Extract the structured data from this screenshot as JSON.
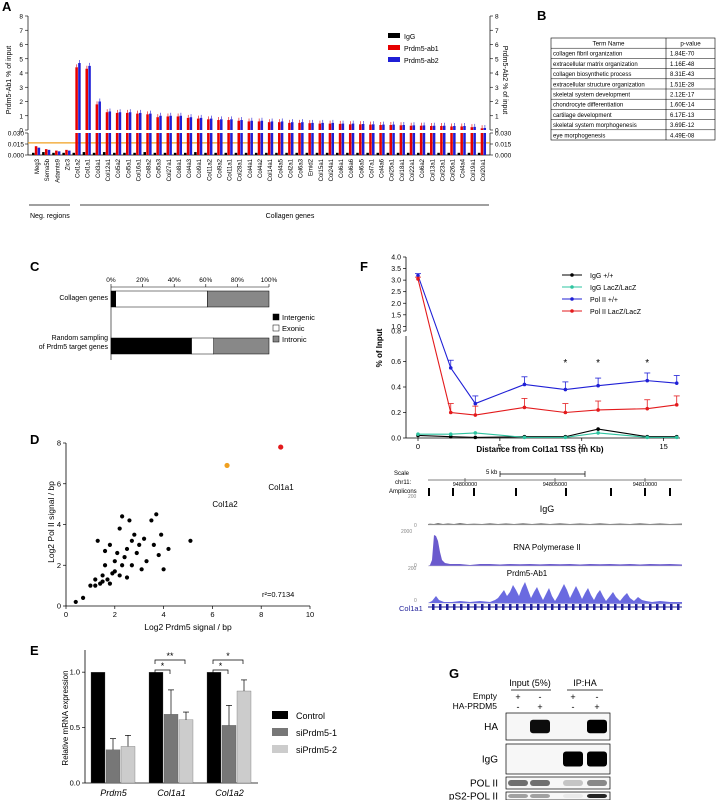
{
  "panel_letters": {
    "A": "A",
    "B": "B",
    "C": "C",
    "D": "D",
    "E": "E",
    "F": "F",
    "G": "G"
  },
  "panel_a": {
    "y_left_label": "Prdm5-Ab1 % of input",
    "y_right_label": "Prdm5-Ab2 % of input",
    "y_upper_ticks": [
      "0",
      "1",
      "2",
      "3",
      "4",
      "5",
      "6",
      "7",
      "8"
    ],
    "y_lower_ticks": [
      "0.000",
      "0.015",
      "0.030"
    ],
    "legend": [
      "IgG",
      "Prdm5-ab1",
      "Prdm5-ab2"
    ],
    "group_neg": "Neg. regions",
    "group_coll": "Collagen genes",
    "colors": {
      "igg": "#000000",
      "ab1": "#e60000",
      "ab2": "#1f1fd6",
      "threshold": "#f0a020"
    }
  },
  "panel_b": {
    "headers": [
      "Term Name",
      "p-value"
    ],
    "rows": [
      [
        "collagen fibril organization",
        "1.84E-70"
      ],
      [
        "extracellular matrix organization",
        "1.16E-48"
      ],
      [
        "collagen biosynthetic process",
        "8.31E-43"
      ],
      [
        "extracellular structure organization",
        "1.51E-28"
      ],
      [
        "skeletal system development",
        "2.12E-17"
      ],
      [
        "chondrocyte differentiation",
        "1.60E-14"
      ],
      [
        "cartilage development",
        "6.17E-13"
      ],
      [
        "skeletal system morphogenesis",
        "3.69E-12"
      ],
      [
        "eye morphogenesis",
        "4.49E-08"
      ]
    ]
  },
  "panel_c": {
    "ticks": [
      "0%",
      "20%",
      "40%",
      "60%",
      "80%",
      "100%"
    ],
    "row1": "Collagen genes",
    "row2_line1": "Random sampling",
    "row2_line2": "of Prdm5 target genes",
    "legend": [
      "Intergenic",
      "Exonic",
      "Intronic"
    ]
  },
  "panel_d": {
    "xlabel": "Log2 Prdm5 signal / bp",
    "ylabel": "Log2 Pol II signal / bp",
    "xticks": [
      "0",
      "2",
      "4",
      "6",
      "8",
      "10"
    ],
    "yticks": [
      "0",
      "2",
      "4",
      "6",
      "8"
    ],
    "r2": "r²=0.7134",
    "labels": {
      "col1a1": "Col1a1",
      "col1a2": "Col1a2"
    }
  },
  "panel_e": {
    "ylabel": "Relative mRNA expression",
    "yticks": [
      "0.0",
      "0.5",
      "1.0"
    ],
    "genes": [
      "Prdm5",
      "Col1a1",
      "Col1a2"
    ],
    "legend": [
      "Control",
      "siPrdm5-1",
      "siPrdm5-2"
    ],
    "stars": [
      "**",
      "*",
      "*",
      "*"
    ]
  },
  "panel_f": {
    "ylabel": "% of Input",
    "xlabel": "Distance from Col1a1 TSS (in Kb)",
    "yticks_upper": [
      "0.8",
      "1.0",
      "1.5",
      "2.0",
      "2.5",
      "3.0",
      "3.5",
      "4.0"
    ],
    "yticks_lower": [
      "0.0",
      "0.2",
      "0.4",
      "0.6"
    ],
    "xticks": [
      "0",
      "5",
      "10",
      "15"
    ],
    "legend": [
      "IgG +/+",
      "IgG LacZ/LacZ",
      "Pol II +/+",
      "Pol II LacZ/LacZ"
    ],
    "stars": [
      "*",
      "*",
      "*"
    ]
  },
  "panel_f_tracks": {
    "scale": "Scale",
    "chrom": "chr11:",
    "amplicons": "Amplicons",
    "scalebar": "5 kb",
    "coords": [
      "94800000",
      "94805000",
      "94810000"
    ],
    "track_titles": [
      "IgG",
      "RNA Polymerase II",
      "Prdm5-Ab1"
    ],
    "track_max": [
      "200",
      "2000",
      "200"
    ],
    "track_min": [
      "0",
      "0",
      "0"
    ],
    "gene": "Col1a1"
  },
  "panel_g": {
    "header1": "Input (5%)",
    "header2": "IP:HA",
    "row_empty": "Empty",
    "row_ha": "HA-PRDM5",
    "signs_empty": [
      "+",
      "-",
      "+",
      "-"
    ],
    "signs_ha": [
      "-",
      "+",
      "-",
      "+"
    ],
    "blots": [
      "HA",
      "IgG",
      "POL II",
      "pS2-POL II"
    ]
  },
  "chart_data": [
    {
      "type": "bar",
      "title": "",
      "ylabel": "Prdm5-Ab1 % of input",
      "categories": [
        "Meg3",
        "Sema5b",
        "Adamts9",
        "Zic3",
        "Col1a2",
        "Col1a1",
        "Col3a1",
        "Col12a1",
        "Col5a2",
        "Col5a1",
        "Col16a1",
        "Col8a2",
        "Col5a3",
        "Col27a1",
        "Col8a1",
        "Col4a3",
        "Col9a1",
        "Col11a2",
        "Col9a2",
        "Col11a1",
        "Col28a1",
        "Col4a1",
        "Col4a2",
        "Col14a1",
        "Col4a5",
        "Col2a1",
        "Col6a3",
        "Emid2",
        "Col15a1",
        "Col24a1",
        "Col6a1",
        "Col6a6",
        "Col6a5",
        "Col7a1",
        "Col4a6",
        "Col25a1",
        "Col18a1",
        "Col22a1",
        "Col6a2",
        "Col13a1",
        "Col23a1",
        "Col26a1",
        "Col4a4",
        "Col19a1",
        "Col20a1"
      ],
      "series": [
        {
          "name": "IgG",
          "values": [
            0.003,
            0.004,
            0.003,
            0.003,
            0.003,
            0.004,
            0.003,
            0.004,
            0.003,
            0.003,
            0.003,
            0.004,
            0.003,
            0.003,
            0.003,
            0.003,
            0.004,
            0.003,
            0.003,
            0.003,
            0.003,
            0.003,
            0.003,
            0.003,
            0.003,
            0.003,
            0.003,
            0.003,
            0.003,
            0.003,
            0.003,
            0.003,
            0.003,
            0.003,
            0.003,
            0.003,
            0.003,
            0.003,
            0.003,
            0.003,
            0.003,
            0.003,
            0.003,
            0.003,
            0.003
          ]
        },
        {
          "name": "Prdm5-ab1",
          "values": [
            0.012,
            0.008,
            0.006,
            0.007,
            4.4,
            4.3,
            1.8,
            1.25,
            1.2,
            1.2,
            1.15,
            1.1,
            0.9,
            0.95,
            0.95,
            0.85,
            0.8,
            0.75,
            0.7,
            0.7,
            0.65,
            0.6,
            0.6,
            0.55,
            0.55,
            0.5,
            0.5,
            0.48,
            0.45,
            0.45,
            0.43,
            0.4,
            0.4,
            0.38,
            0.35,
            0.35,
            0.33,
            0.3,
            0.3,
            0.28,
            0.28,
            0.25,
            0.25,
            0.2,
            0.12
          ]
        },
        {
          "name": "Prdm5-ab2",
          "values": [
            0.01,
            0.007,
            0.005,
            0.006,
            4.7,
            4.5,
            2.0,
            1.3,
            1.25,
            1.25,
            1.2,
            1.15,
            1.0,
            1.0,
            1.0,
            0.9,
            0.85,
            0.8,
            0.75,
            0.75,
            0.7,
            0.65,
            0.65,
            0.6,
            0.6,
            0.55,
            0.55,
            0.5,
            0.5,
            0.5,
            0.45,
            0.45,
            0.42,
            0.4,
            0.38,
            0.38,
            0.35,
            0.33,
            0.32,
            0.3,
            0.3,
            0.28,
            0.28,
            0.22,
            0.14
          ]
        }
      ]
    },
    {
      "type": "bar",
      "title": "",
      "categories": [
        "Collagen genes",
        "Random sampling of Prdm5 target genes"
      ],
      "series": [
        {
          "name": "Intergenic",
          "values": [
            3,
            51
          ]
        },
        {
          "name": "Exonic",
          "values": [
            58,
            14
          ]
        },
        {
          "name": "Intronic",
          "values": [
            39,
            35
          ]
        }
      ],
      "xlim": [
        0,
        100
      ]
    },
    {
      "type": "scatter",
      "xlabel": "Log2 Prdm5 signal / bp",
      "ylabel": "Log2 Pol II signal / bp",
      "xlim": [
        0,
        10
      ],
      "ylim": [
        0,
        8
      ],
      "points": [
        [
          0.4,
          0.2
        ],
        [
          0.7,
          0.4
        ],
        [
          1.0,
          1.0
        ],
        [
          1.2,
          1.0
        ],
        [
          1.2,
          1.3
        ],
        [
          1.3,
          3.2
        ],
        [
          1.4,
          1.1
        ],
        [
          1.5,
          1.2
        ],
        [
          1.5,
          1.5
        ],
        [
          1.6,
          2.0
        ],
        [
          1.6,
          2.7
        ],
        [
          1.7,
          1.3
        ],
        [
          1.8,
          1.1
        ],
        [
          1.8,
          3.0
        ],
        [
          1.9,
          1.6
        ],
        [
          2.0,
          2.2
        ],
        [
          2.0,
          1.7
        ],
        [
          2.1,
          2.6
        ],
        [
          2.2,
          1.5
        ],
        [
          2.2,
          3.8
        ],
        [
          2.3,
          2.0
        ],
        [
          2.3,
          4.4
        ],
        [
          2.4,
          2.4
        ],
        [
          2.5,
          2.8
        ],
        [
          2.5,
          1.4
        ],
        [
          2.6,
          4.2
        ],
        [
          2.7,
          3.2
        ],
        [
          2.7,
          2.0
        ],
        [
          2.8,
          3.5
        ],
        [
          2.9,
          2.6
        ],
        [
          3.0,
          3.0
        ],
        [
          3.1,
          1.8
        ],
        [
          3.2,
          3.3
        ],
        [
          3.3,
          2.2
        ],
        [
          3.5,
          4.2
        ],
        [
          3.6,
          3.0
        ],
        [
          3.7,
          4.5
        ],
        [
          3.8,
          2.5
        ],
        [
          3.9,
          3.5
        ],
        [
          4.0,
          1.8
        ],
        [
          4.2,
          2.8
        ],
        [
          5.1,
          3.2
        ],
        [
          6.6,
          6.9
        ],
        [
          8.8,
          7.8
        ]
      ],
      "r2": 0.7134
    },
    {
      "type": "bar",
      "ylabel": "Relative mRNA expression",
      "categories": [
        "Prdm5",
        "Col1a1",
        "Col1a2"
      ],
      "ylim": [
        0,
        1.2
      ],
      "series": [
        {
          "name": "Control",
          "values": [
            1.0,
            1.0,
            1.0
          ]
        },
        {
          "name": "siPrdm5-1",
          "values": [
            0.3,
            0.62,
            0.52
          ]
        },
        {
          "name": "siPrdm5-2",
          "values": [
            0.33,
            0.57,
            0.83
          ]
        }
      ]
    },
    {
      "type": "line",
      "ylabel": "% of Input",
      "xlabel": "Distance from Col1a1 TSS (in Kb)",
      "x": [
        0,
        2,
        3.5,
        6.5,
        9,
        11,
        14,
        15.8
      ],
      "series": [
        {
          "name": "IgG +/+",
          "values": [
            0.02,
            0.01,
            0.005,
            0.01,
            0.01,
            0.07,
            0.01,
            0.01
          ]
        },
        {
          "name": "IgG LacZ/LacZ",
          "values": [
            0.03,
            0.03,
            0.04,
            0.005,
            0.005,
            0.04,
            0.005,
            0.005
          ]
        },
        {
          "name": "Pol II +/+",
          "values": [
            3.2,
            0.55,
            0.27,
            0.42,
            0.38,
            0.41,
            0.45,
            0.43
          ]
        },
        {
          "name": "Pol II LacZ/LacZ",
          "values": [
            3.05,
            0.2,
            0.18,
            0.24,
            0.2,
            0.22,
            0.23,
            0.26
          ]
        }
      ]
    }
  ]
}
